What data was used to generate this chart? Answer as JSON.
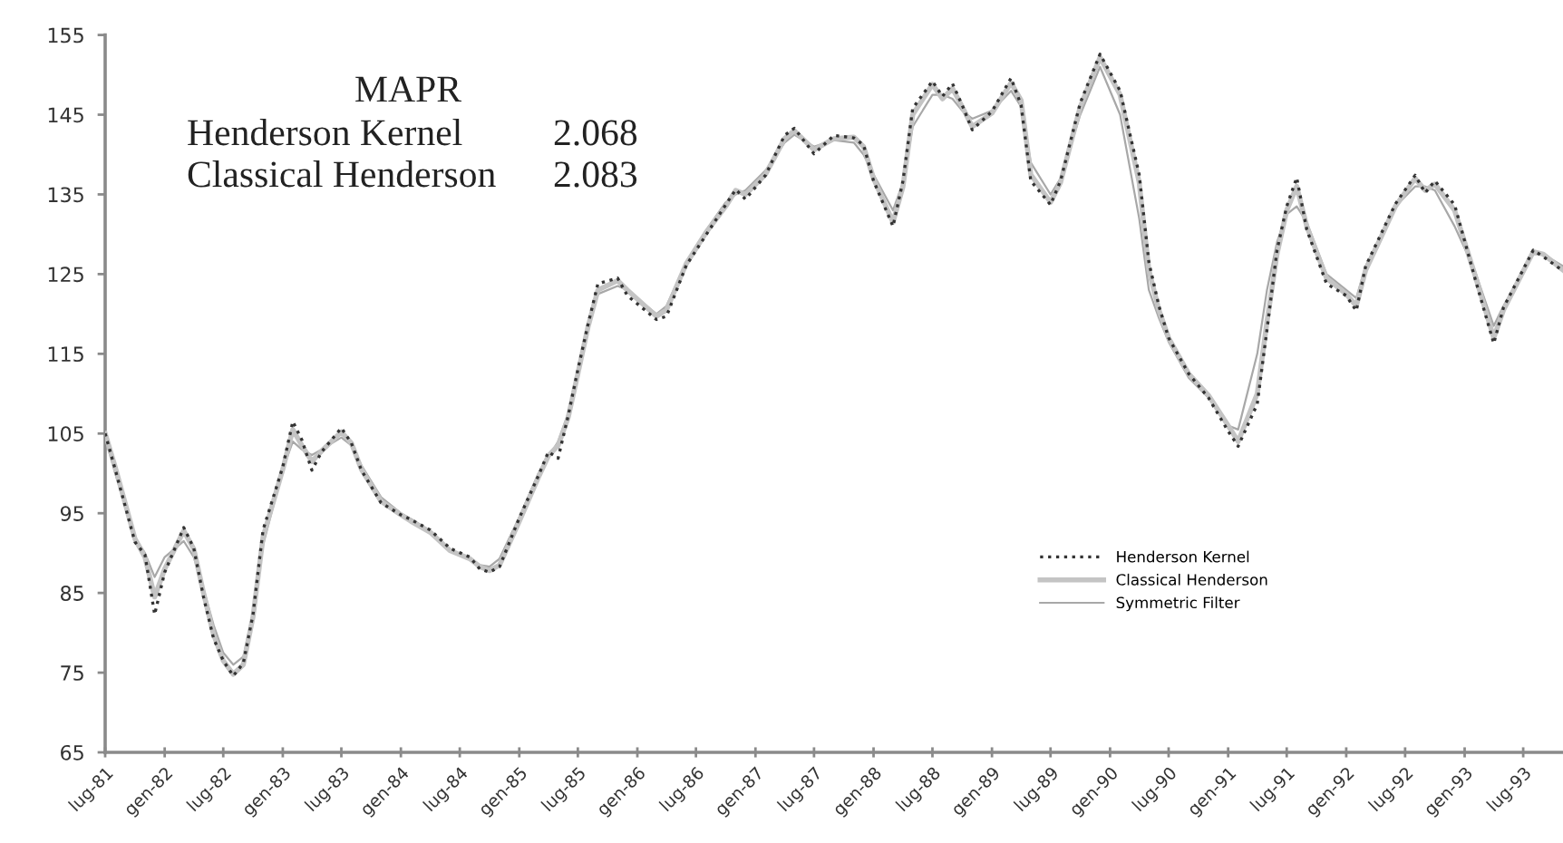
{
  "chart_data": {
    "type": "line",
    "annotations": [
      "MAPR",
      "Henderson Kernel",
      "2.068",
      "Classical Henderson",
      "2.083"
    ],
    "x": [
      "1981-07",
      "1981-08",
      "1981-10",
      "1981-11",
      "1981-12",
      "1982-01",
      "1982-03",
      "1982-04",
      "1982-05",
      "1982-06",
      "1982-07",
      "1982-08",
      "1982-09",
      "1982-10",
      "1982-11",
      "1983-01",
      "1983-02",
      "1983-03",
      "1983-04",
      "1983-05",
      "1983-07",
      "1983-08",
      "1983-09",
      "1983-11",
      "1984-01",
      "1984-02",
      "1984-04",
      "1984-06",
      "1984-08",
      "1984-09",
      "1984-10",
      "1984-11",
      "1985-01",
      "1985-03",
      "1985-04",
      "1985-05",
      "1985-06",
      "1985-07",
      "1985-08",
      "1985-09",
      "1985-11",
      "1985-12",
      "1986-03",
      "1986-04",
      "1986-06",
      "1986-08",
      "1986-10",
      "1986-11",
      "1986-12",
      "1987-02",
      "1987-04",
      "1987-05",
      "1987-07",
      "1987-09",
      "1987-11",
      "1987-12",
      "1988-01",
      "1988-03",
      "1988-04",
      "1988-05",
      "1988-07",
      "1988-08",
      "1988-09",
      "1988-10",
      "1988-11",
      "1989-01",
      "1989-03",
      "1989-04",
      "1989-05",
      "1989-07",
      "1989-08",
      "1989-10",
      "1989-12",
      "1990-02",
      "1990-04",
      "1990-05",
      "1990-06",
      "1990-07",
      "1990-09",
      "1990-11",
      "1991-01",
      "1991-02",
      "1991-04",
      "1991-05",
      "1991-06",
      "1991-07",
      "1991-08",
      "1991-09",
      "1991-11",
      "1992-01",
      "1992-02",
      "1992-03",
      "1992-06",
      "1992-08",
      "1992-09",
      "1992-10",
      "1992-12",
      "1993-02",
      "1993-04",
      "1993-05",
      "1993-08",
      "1993-09",
      "1993-11"
    ],
    "series": [
      {
        "name": "Henderson Kernel",
        "color": "#333333",
        "line_style": "dotted",
        "values": [
          105.0,
          100.5,
          91.4,
          89.8,
          82.3,
          87.6,
          93.2,
          90.6,
          84.5,
          79.3,
          76.5,
          74.6,
          76.2,
          82.3,
          92.9,
          100.8,
          106.5,
          104.2,
          100.4,
          102.7,
          105.7,
          103.8,
          100.4,
          96.3,
          94.8,
          94.2,
          92.9,
          90.6,
          89.5,
          88.0,
          87.6,
          88.3,
          94.4,
          99.7,
          102.7,
          101.9,
          107.2,
          113.0,
          118.6,
          123.8,
          124.5,
          122.3,
          119.3,
          119.7,
          126.1,
          129.9,
          133.7,
          135.6,
          134.4,
          137.4,
          142.4,
          143.3,
          140.1,
          142.4,
          142.1,
          141.2,
          136.7,
          131.0,
          136.7,
          145.8,
          149.2,
          147.3,
          148.9,
          146.2,
          143.1,
          145.4,
          149.6,
          146.2,
          136.7,
          133.7,
          136.7,
          146.5,
          152.6,
          148.0,
          137.5,
          126.5,
          121.0,
          117.0,
          112.5,
          109.5,
          105.3,
          103.4,
          108.7,
          118.0,
          128.0,
          133.5,
          137.1,
          130.6,
          123.8,
          122.3,
          120.4,
          126.0,
          133.8,
          137.4,
          135.2,
          136.7,
          133.7,
          124.6,
          116.3,
          120.8,
          128.0,
          127.2,
          125.4
        ]
      },
      {
        "name": "Classical Henderson",
        "color": "#c4c4c4",
        "line_style": "solid",
        "values": [
          105.0,
          100.8,
          91.8,
          89.5,
          84.5,
          88.0,
          92.8,
          90.5,
          85.0,
          79.8,
          76.5,
          74.8,
          76.0,
          82.0,
          92.0,
          100.5,
          105.5,
          103.5,
          101.5,
          102.8,
          105.2,
          103.8,
          100.5,
          96.5,
          94.8,
          94.0,
          92.6,
          90.3,
          89.3,
          88.3,
          87.8,
          88.5,
          94.0,
          99.5,
          102.2,
          103.5,
          107.0,
          112.5,
          118.3,
          123.0,
          124.2,
          123.0,
          119.7,
          120.5,
          126.3,
          130.2,
          133.5,
          135.5,
          135.0,
          137.5,
          142.0,
          143.0,
          140.6,
          142.0,
          142.2,
          141.0,
          137.0,
          131.5,
          136.0,
          145.0,
          148.8,
          147.0,
          148.3,
          146.0,
          143.5,
          145.2,
          149.0,
          146.8,
          137.5,
          134.0,
          136.5,
          146.0,
          152.2,
          147.5,
          136.5,
          125.5,
          120.5,
          117.0,
          112.5,
          109.8,
          106.0,
          104.0,
          110.0,
          119.0,
          127.5,
          133.0,
          136.0,
          131.0,
          124.5,
          122.5,
          121.0,
          125.5,
          133.5,
          137.0,
          135.5,
          136.3,
          133.0,
          125.0,
          117.0,
          120.5,
          127.8,
          127.5,
          125.5
        ]
      },
      {
        "name": "Symmetric Filter",
        "color": "#a8a8a8",
        "line_style": "solid",
        "values": [
          104.5,
          100.0,
          92.0,
          90.0,
          87.0,
          89.5,
          91.5,
          89.5,
          85.5,
          81.0,
          77.5,
          76.0,
          77.0,
          82.5,
          91.0,
          100.5,
          104.0,
          103.0,
          102.3,
          103.0,
          104.5,
          103.5,
          101.0,
          97.0,
          95.0,
          94.3,
          92.8,
          90.3,
          89.3,
          88.5,
          88.3,
          89.3,
          94.5,
          100.0,
          102.0,
          104.0,
          107.5,
          113.0,
          118.0,
          122.5,
          123.5,
          123.0,
          120.0,
          121.0,
          126.5,
          130.5,
          134.0,
          135.0,
          135.5,
          138.0,
          141.5,
          142.5,
          141.0,
          141.8,
          141.5,
          140.0,
          137.5,
          133.0,
          136.5,
          143.5,
          147.5,
          147.5,
          147.0,
          145.5,
          144.5,
          145.5,
          148.0,
          146.0,
          139.0,
          135.0,
          137.0,
          145.0,
          151.0,
          145.0,
          132.0,
          123.0,
          119.5,
          116.5,
          112.0,
          109.5,
          106.0,
          105.5,
          115.0,
          123.0,
          129.0,
          132.5,
          133.5,
          131.5,
          125.0,
          123.0,
          122.0,
          126.0,
          133.5,
          136.0,
          136.0,
          135.5,
          131.0,
          125.5,
          118.5,
          121.0,
          127.5,
          127.5,
          126.0
        ]
      }
    ],
    "xlim": [
      "1981-07",
      "1993-11"
    ],
    "xticks": [
      {
        "value": "1981-07",
        "label": "lug-81"
      },
      {
        "value": "1982-01",
        "label": "gen-82"
      },
      {
        "value": "1982-07",
        "label": "lug-82"
      },
      {
        "value": "1983-01",
        "label": "gen-83"
      },
      {
        "value": "1983-07",
        "label": "lug-83"
      },
      {
        "value": "1984-01",
        "label": "gen-84"
      },
      {
        "value": "1984-07",
        "label": "lug-84"
      },
      {
        "value": "1985-01",
        "label": "gen-85"
      },
      {
        "value": "1985-07",
        "label": "lug-85"
      },
      {
        "value": "1986-01",
        "label": "gen-86"
      },
      {
        "value": "1986-07",
        "label": "lug-86"
      },
      {
        "value": "1987-01",
        "label": "gen-87"
      },
      {
        "value": "1987-07",
        "label": "lug-87"
      },
      {
        "value": "1988-01",
        "label": "gen-88"
      },
      {
        "value": "1988-07",
        "label": "lug-88"
      },
      {
        "value": "1989-01",
        "label": "gen-89"
      },
      {
        "value": "1989-07",
        "label": "lug-89"
      },
      {
        "value": "1990-01",
        "label": "gen-90"
      },
      {
        "value": "1990-07",
        "label": "lug-90"
      },
      {
        "value": "1991-01",
        "label": "gen-91"
      },
      {
        "value": "1991-07",
        "label": "lug-91"
      },
      {
        "value": "1992-01",
        "label": "gen-92"
      },
      {
        "value": "1992-07",
        "label": "lug-92"
      },
      {
        "value": "1993-01",
        "label": "gen-93"
      },
      {
        "value": "1993-07",
        "label": "lug-93"
      }
    ],
    "ylim": [
      65,
      155
    ],
    "yticks": [
      65,
      75,
      85,
      95,
      105,
      115,
      125,
      135,
      145,
      155
    ],
    "legend": "bottom right"
  }
}
